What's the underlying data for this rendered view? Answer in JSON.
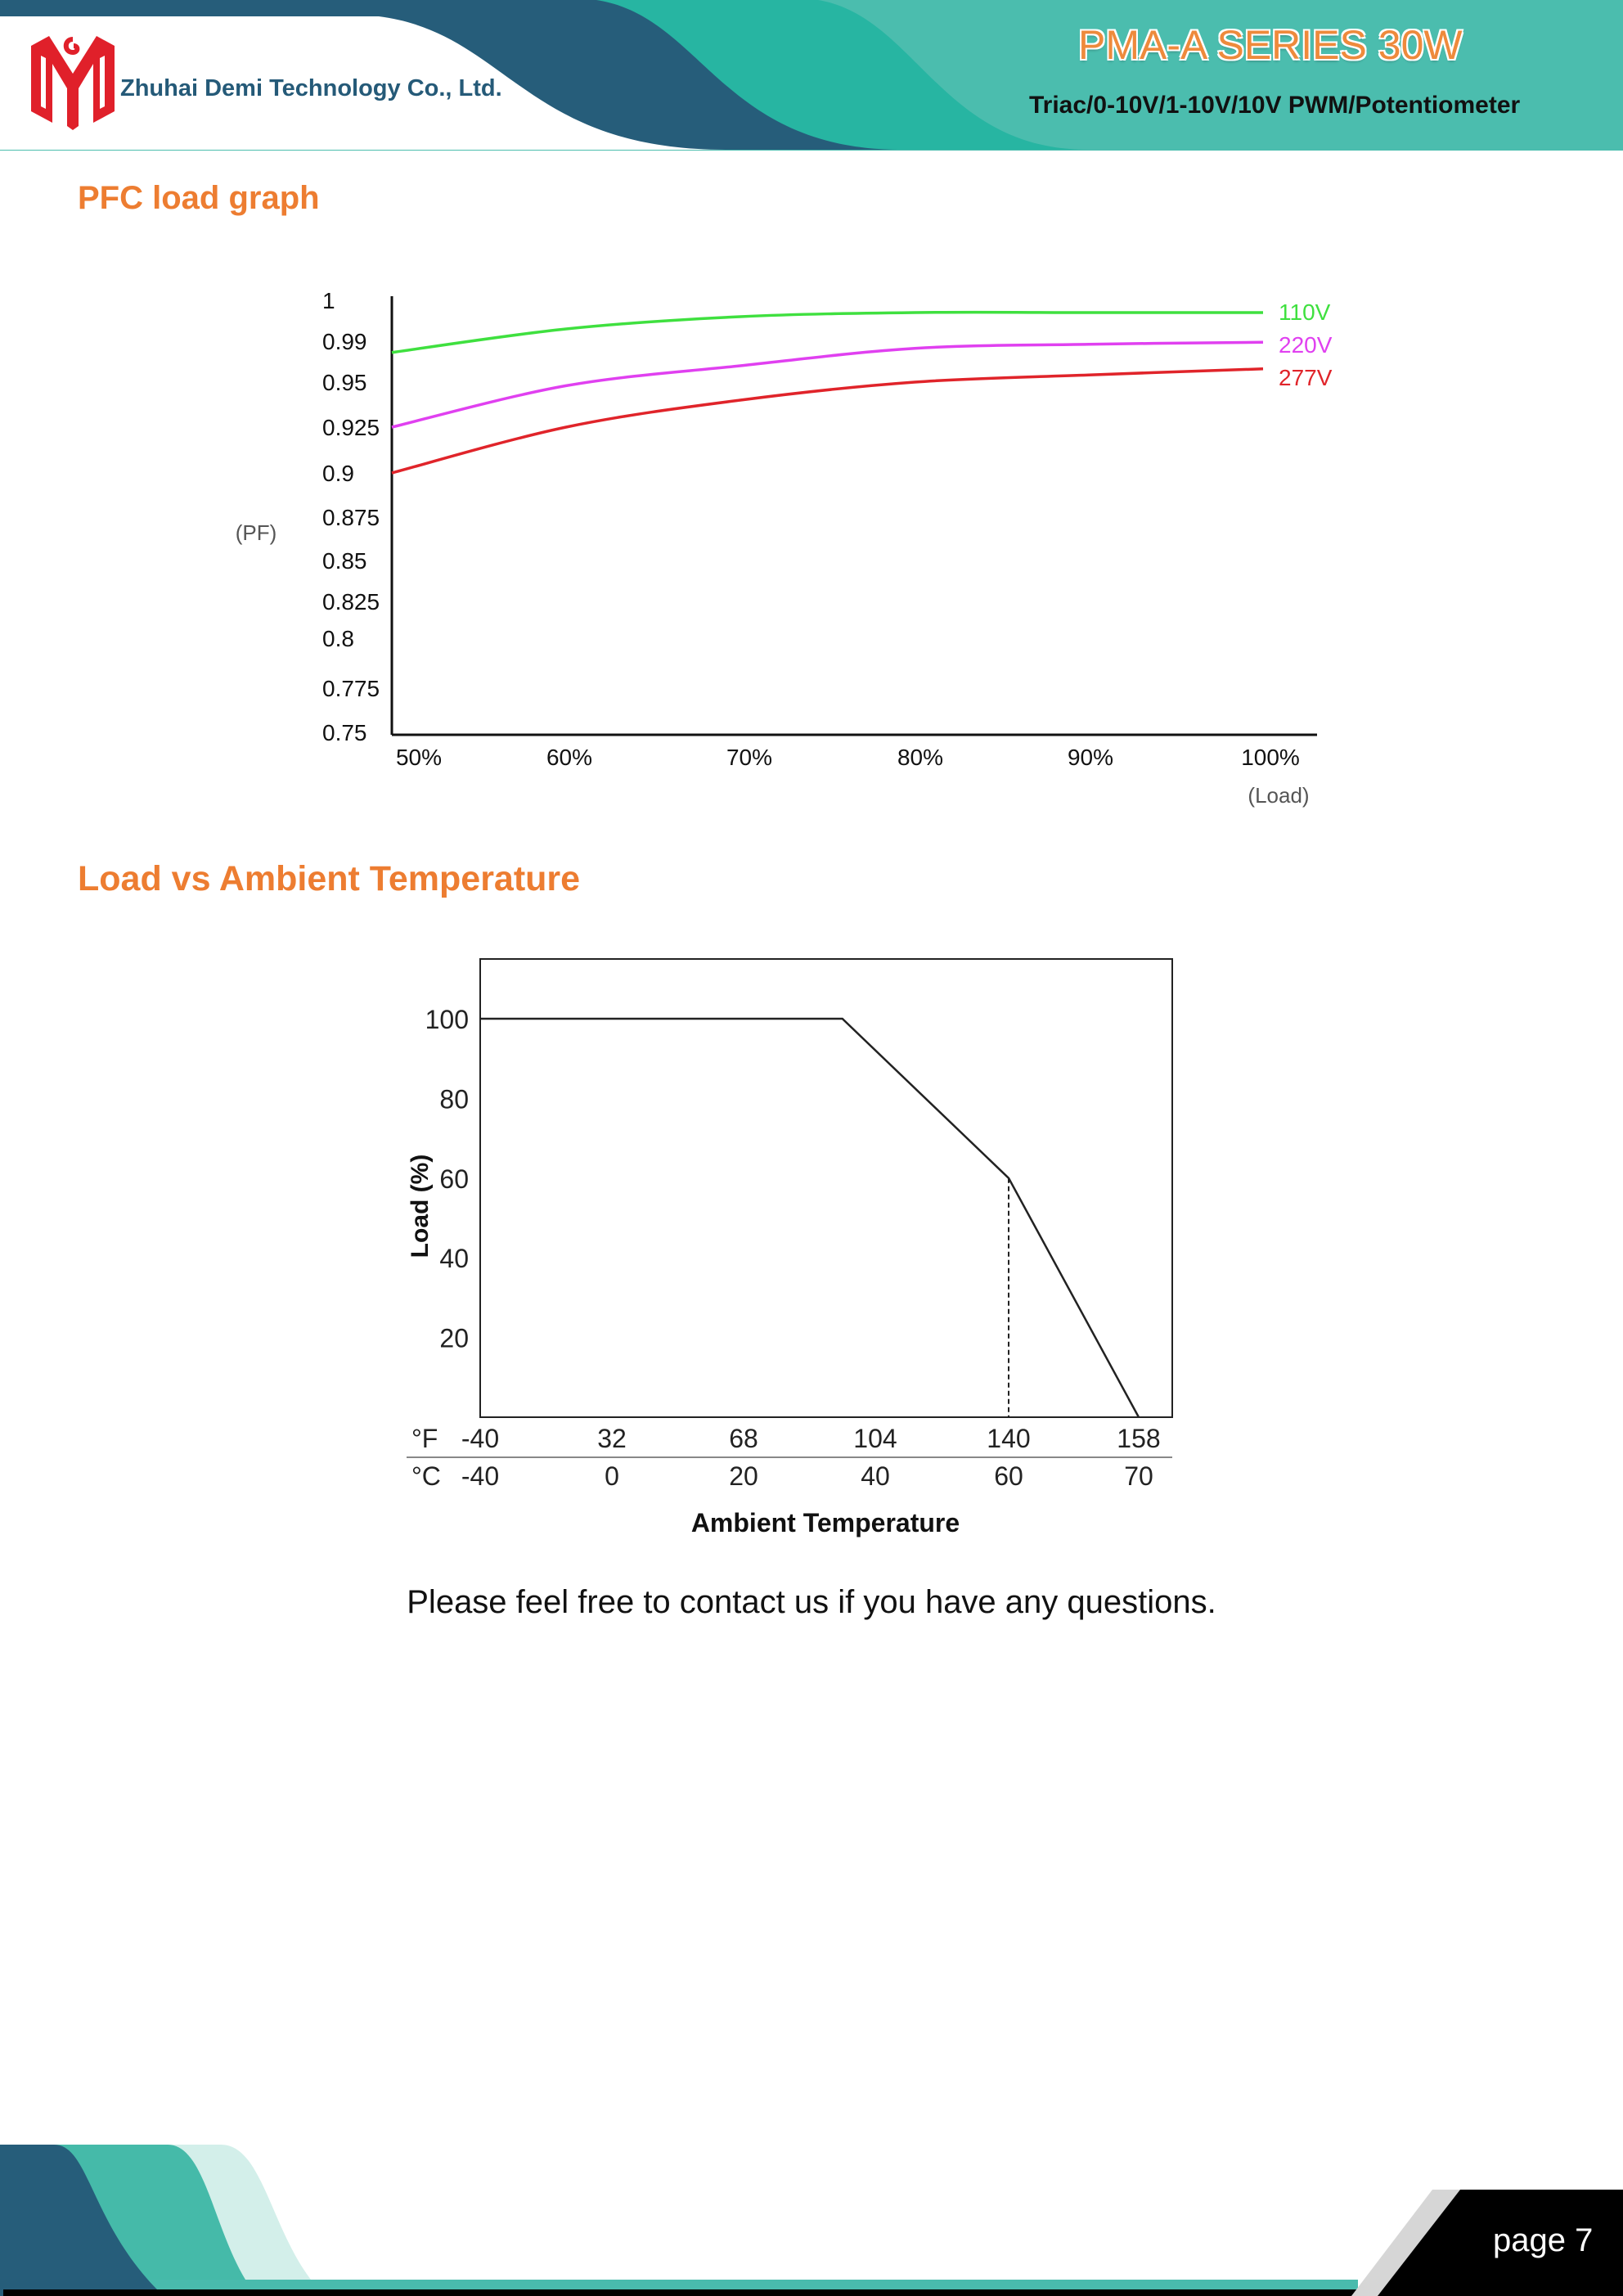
{
  "header": {
    "company": "Zhuhai Demi Technology Co., Ltd.",
    "series_title": "PMA-A SERIES 30W",
    "series_subtitle": "Triac/0-10V/1-10V/10V PWM/Potentiometer",
    "colors": {
      "dark_blue": "#265d7a",
      "teal": "#27b5a2",
      "light_teal": "#4bbdae",
      "logo_red": "#e0202a",
      "title_orange": "#ee8a3c"
    }
  },
  "sections": {
    "pfc_title": "PFC load graph",
    "temp_title": "Load vs Ambient Temperature"
  },
  "chart_data": [
    {
      "type": "line",
      "title": "",
      "xlabel": "(Load)",
      "ylabel": "(PF)",
      "x": [
        50,
        60,
        70,
        80,
        90,
        100
      ],
      "x_tick_labels": [
        "50%",
        "60%",
        "70%",
        "80%",
        "90%",
        "100%"
      ],
      "y_ticks": [
        1,
        0.99,
        0.95,
        0.925,
        0.9,
        0.875,
        0.85,
        0.825,
        0.8,
        0.775,
        0.75
      ],
      "y_tick_labels": [
        "1",
        "0.99",
        "0.95",
        "0.925",
        "0.9",
        "0.875",
        "0.85",
        "0.825",
        "0.8",
        "0.775",
        "0.75"
      ],
      "ylim": [
        0.75,
        1
      ],
      "xlim": [
        50,
        100
      ],
      "grid": false,
      "legend": "right end of lines",
      "series": [
        {
          "name": "110V",
          "color": "#3fe03f",
          "values": [
            0.979,
            0.993,
            0.996,
            0.997,
            0.997,
            0.997
          ]
        },
        {
          "name": "220V",
          "color": "#e040f0",
          "values": [
            0.925,
            0.948,
            0.966,
            0.983,
            0.987,
            0.989
          ]
        },
        {
          "name": "277V",
          "color": "#e0242a",
          "values": [
            0.9,
            0.925,
            0.94,
            0.95,
            0.957,
            0.963
          ]
        }
      ]
    },
    {
      "type": "line",
      "title": "",
      "xlabel": "Ambient Temperature",
      "ylabel": "Load (%)",
      "x_unit_f": "°F",
      "x_unit_c": "°C",
      "x_ticks_c": [
        -40,
        0,
        20,
        40,
        60,
        70
      ],
      "x_tick_labels_f": [
        "-40",
        "32",
        "68",
        "104",
        "140",
        "158"
      ],
      "x_tick_labels_c": [
        "-40",
        "0",
        "20",
        "40",
        "60",
        "70"
      ],
      "y_ticks": [
        20,
        40,
        60,
        80,
        100
      ],
      "y_tick_labels": [
        "20",
        "40",
        "60",
        "80",
        "100"
      ],
      "ylim": [
        0,
        115
      ],
      "grid": false,
      "series": [
        {
          "color": "#222222",
          "points": [
            [
              -40,
              100
            ],
            [
              35,
              100
            ],
            [
              60,
              60
            ],
            [
              70,
              0
            ]
          ]
        }
      ],
      "reference_line": {
        "style": "dashed",
        "x": 60,
        "from": 0,
        "to": 60
      }
    }
  ],
  "contact_text": "Please feel free to contact us if you have any questions.",
  "footer": {
    "page_label": "page 7"
  }
}
